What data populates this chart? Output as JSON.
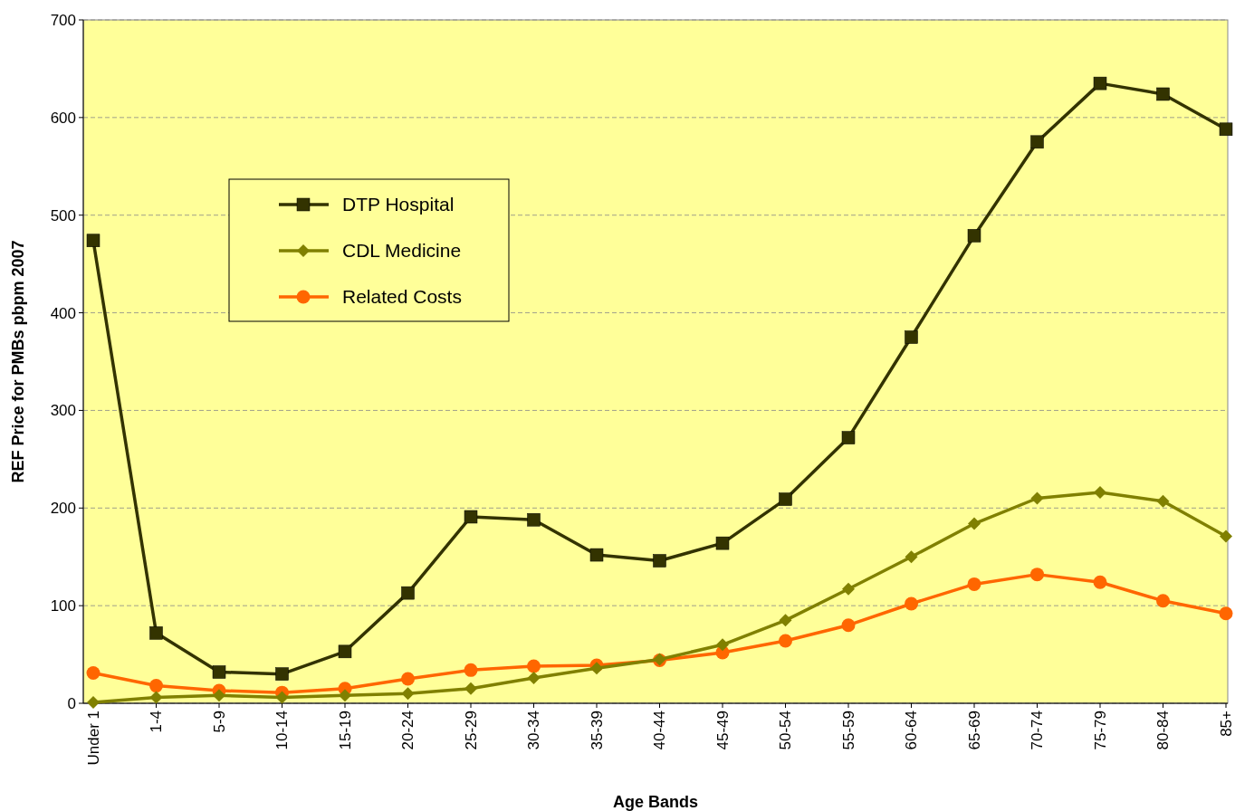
{
  "chart_data": {
    "type": "line",
    "xlabel": "Age Bands",
    "ylabel": "REF Price for PMBs pbpm 2007",
    "categories": [
      "Under 1",
      "1-4",
      "5-9",
      "10-14",
      "15-19",
      "20-24",
      "25-29",
      "30-34",
      "35-39",
      "40-44",
      "45-49",
      "50-54",
      "55-59",
      "60-64",
      "65-69",
      "70-74",
      "75-79",
      "80-84",
      "85+"
    ],
    "series": [
      {
        "name": "DTP Hospital",
        "color": "#333300",
        "marker": "square",
        "values": [
          474,
          72,
          32,
          30,
          53,
          113,
          191,
          188,
          152,
          146,
          164,
          209,
          272,
          375,
          479,
          575,
          635,
          624,
          588
        ]
      },
      {
        "name": "CDL Medicine",
        "color": "#808000",
        "marker": "diamond",
        "values": [
          1,
          6,
          8,
          6,
          8,
          10,
          15,
          26,
          36,
          45,
          60,
          85,
          117,
          150,
          184,
          210,
          216,
          207,
          171
        ]
      },
      {
        "name": "Related Costs",
        "color": "#ff6600",
        "marker": "circle",
        "values": [
          31,
          18,
          13,
          11,
          15,
          25,
          34,
          38,
          39,
          44,
          52,
          64,
          80,
          102,
          122,
          132,
          124,
          105,
          92
        ]
      }
    ],
    "ylim": [
      0,
      700
    ],
    "yticks": [
      0,
      100,
      200,
      300,
      400,
      500,
      600,
      700
    ],
    "grid": "y",
    "legend": "top left"
  }
}
